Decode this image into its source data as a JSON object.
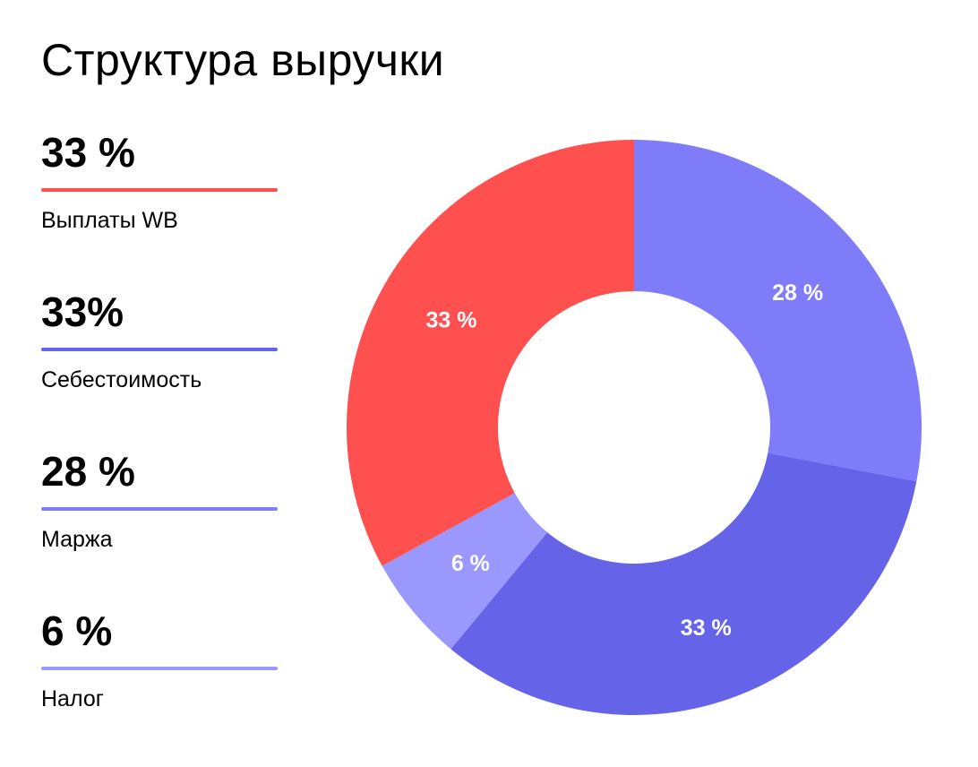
{
  "chart_data": {
    "type": "pie",
    "title": "Структура выручки",
    "donut": true,
    "slices": [
      {
        "label": "Маржа",
        "value": 28,
        "display": "28 %",
        "color": "#7f7cf9"
      },
      {
        "label": "Себестоимость",
        "value": 33,
        "display": "33 %",
        "color": "#6563e8"
      },
      {
        "label": "Налог",
        "value": 6,
        "display": "6 %",
        "color": "#9a97fd"
      },
      {
        "label": "Выплаты WB",
        "value": 33,
        "display": "33 %",
        "color": "#ff5050"
      }
    ],
    "legend": [
      {
        "value": "33 %",
        "label": "Выплаты WB",
        "color": "#ff5050"
      },
      {
        "value": "33%",
        "label": "Себестоимость",
        "color": "#6563e8"
      },
      {
        "value": "28 %",
        "label": "Маржа",
        "color": "#7f7cf9"
      },
      {
        "value": "6 %",
        "label": "Налог",
        "color": "#9a97fd"
      }
    ],
    "legend_placement": "left"
  }
}
